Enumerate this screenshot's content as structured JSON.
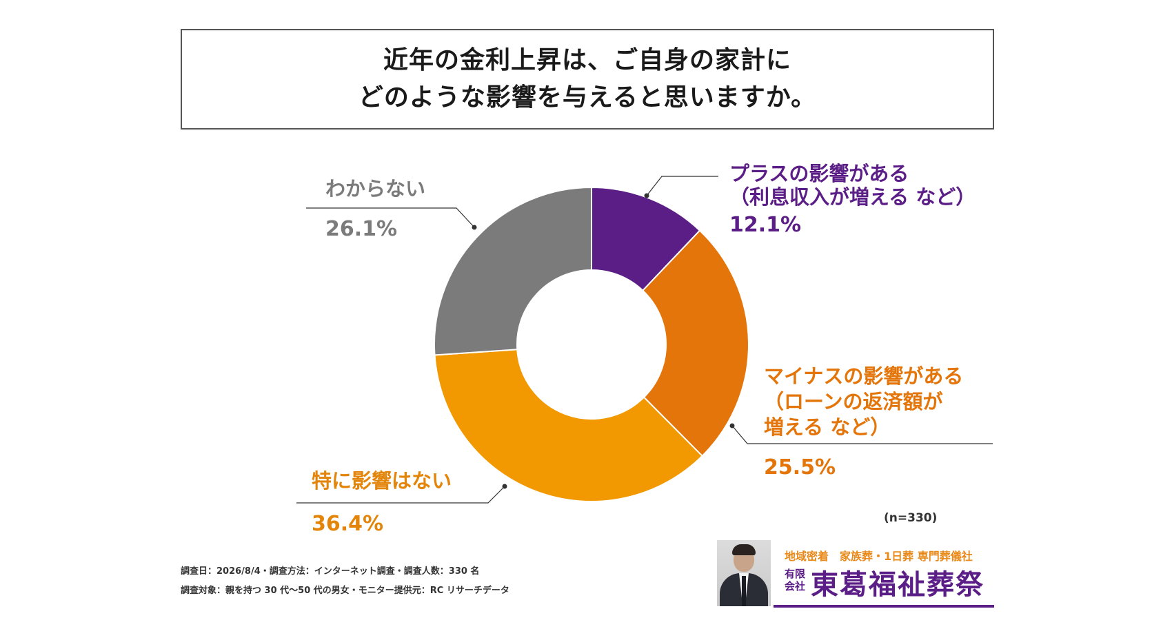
{
  "title": {
    "line1": "近年の金利上昇は、ご自身の家計に",
    "line2": "どのような影響を与えると思いますか。"
  },
  "chart_data": {
    "type": "pie",
    "donut": true,
    "slices": [
      {
        "label_lines": [
          "プラスの影響がある",
          "（利息収入が増える など）"
        ],
        "value": 12.1,
        "value_text": "12.1%",
        "color": "#5b1d86"
      },
      {
        "label_lines": [
          "マイナスの影響がある",
          "（ローンの返済額が",
          "増える など）"
        ],
        "value": 25.5,
        "value_text": "25.5%",
        "color": "#e3750a"
      },
      {
        "label_lines": [
          "特に影響はない"
        ],
        "value": 36.4,
        "value_text": "36.4%",
        "color": "#f29800"
      },
      {
        "label_lines": [
          "わからない"
        ],
        "value": 26.1,
        "value_text": "26.1%",
        "color": "#7b7b7b"
      }
    ],
    "start": "top",
    "direction": "clockwise"
  },
  "sample_size": "(n=330)",
  "footnotes": {
    "line1": "調査日：2026/8/4・調査方法：インターネット調査・調査人数：330 名",
    "line2": "調査対象：親を持つ 30 代〜50 代の男女・モニター提供元：RC リサーチデータ"
  },
  "sponsor": {
    "tagline": "地域密着　家族葬・1日葬 専門葬儀社",
    "company_kind": "有限会社",
    "company_name": "東葛福祉葬祭",
    "brand_color": "#5b1d86",
    "accent_color": "#e8891a"
  }
}
